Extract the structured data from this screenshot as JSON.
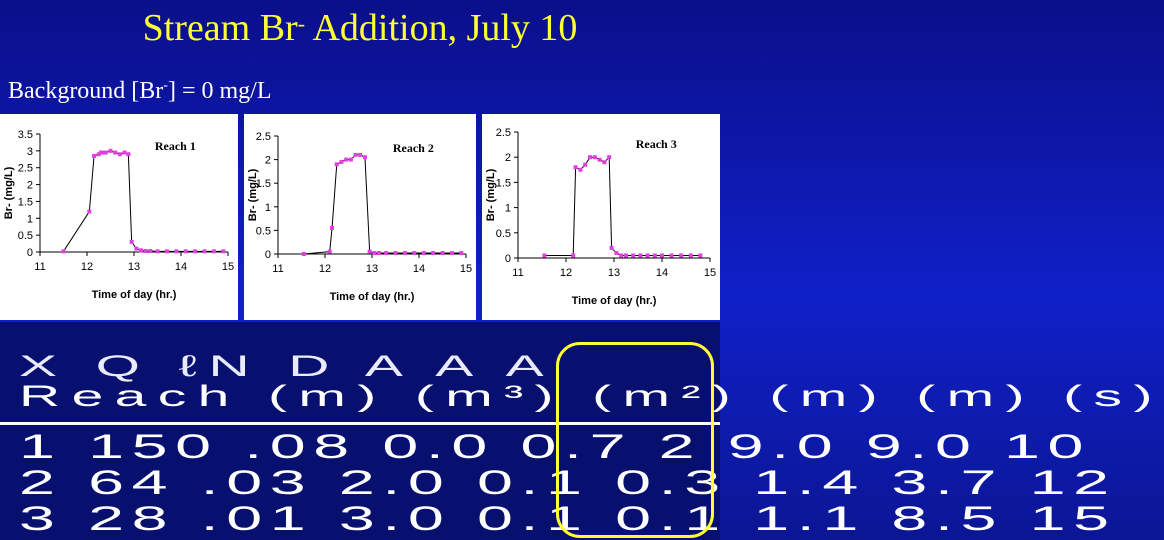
{
  "title": {
    "main": "Stream Br",
    "sup": "-",
    "rest": " Addition, July 10"
  },
  "subtitle": {
    "left": "Background [Br",
    "sup": "-",
    "right": "] = 0 mg/L"
  },
  "chart_data": [
    {
      "type": "scatter",
      "title": "Reach 1",
      "xlabel": "Time of day (hr.)",
      "ylabel": "Br- (mg/L)",
      "xlim": [
        11,
        15
      ],
      "ylim": [
        0,
        3.5
      ],
      "xticks": [
        "11",
        "12",
        "13",
        "14",
        "15"
      ],
      "yticks": [
        "0",
        "0.5",
        "1",
        "1.5",
        "2",
        "2.5",
        "3",
        "3.5"
      ],
      "x": [
        11.5,
        12.05,
        12.15,
        12.25,
        12.3,
        12.35,
        12.4,
        12.5,
        12.6,
        12.7,
        12.8,
        12.88,
        12.95,
        13.05,
        13.15,
        13.25,
        13.35,
        13.5,
        13.7,
        13.9,
        14.1,
        14.3,
        14.5,
        14.7,
        14.9
      ],
      "y": [
        0.02,
        1.2,
        2.85,
        2.9,
        2.95,
        2.95,
        2.95,
        3.0,
        2.95,
        2.9,
        2.95,
        2.9,
        0.3,
        0.1,
        0.05,
        0.03,
        0.03,
        0.02,
        0.02,
        0.02,
        0.02,
        0.02,
        0.02,
        0.02,
        0.02
      ]
    },
    {
      "type": "scatter",
      "title": "Reach 2",
      "xlabel": "Time of day (hr.)",
      "ylabel": "Br- (mg/L)",
      "xlim": [
        11,
        15
      ],
      "ylim": [
        0,
        2.5
      ],
      "xticks": [
        "11",
        "12",
        "13",
        "14",
        "15"
      ],
      "yticks": [
        "0",
        "0.5",
        "1",
        "1.5",
        "2",
        "2.5"
      ],
      "x": [
        11.55,
        12.1,
        12.15,
        12.25,
        12.35,
        12.45,
        12.55,
        12.65,
        12.75,
        12.85,
        12.95,
        13.05,
        13.15,
        13.3,
        13.5,
        13.7,
        13.9,
        14.1,
        14.3,
        14.5,
        14.7,
        14.9
      ],
      "y": [
        0.0,
        0.05,
        0.55,
        1.9,
        1.95,
        2.0,
        2.0,
        2.1,
        2.1,
        2.05,
        0.05,
        0.02,
        0.02,
        0.02,
        0.02,
        0.02,
        0.02,
        0.02,
        0.02,
        0.02,
        0.02,
        0.02
      ]
    },
    {
      "type": "scatter",
      "title": "Reach 3",
      "xlabel": "Time of day (hr.)",
      "ylabel": "Br- (mg/L)",
      "xlim": [
        11,
        15
      ],
      "ylim": [
        0,
        2.5
      ],
      "xticks": [
        "11",
        "12",
        "13",
        "14",
        "15"
      ],
      "yticks": [
        "0",
        "0.5",
        "1",
        "1.5",
        "2",
        "2.5"
      ],
      "x": [
        11.55,
        12.15,
        12.2,
        12.3,
        12.4,
        12.5,
        12.6,
        12.7,
        12.8,
        12.9,
        12.95,
        13.05,
        13.15,
        13.25,
        13.4,
        13.55,
        13.7,
        13.85,
        14.0,
        14.2,
        14.4,
        14.6,
        14.8
      ],
      "y": [
        0.05,
        0.05,
        1.8,
        1.75,
        1.85,
        2.0,
        2.0,
        1.95,
        1.9,
        2.0,
        0.2,
        0.1,
        0.05,
        0.05,
        0.05,
        0.05,
        0.05,
        0.05,
        0.05,
        0.05,
        0.05,
        0.05,
        0.05
      ]
    }
  ],
  "table": {
    "header_top": "X Q   ℓN  D A A A",
    "header_bottom": "Reach (m) (m³) (m²) (m) (m) (s)",
    "rows": [
      {
        "reach": "1",
        "text": "1  150 .08   0.0   0.7 2 9.0 9.0 10"
      },
      {
        "reach": "2",
        "text": "2  64 .03   2.0   0.1 0.3 1.4 3.7 12"
      },
      {
        "reach": "3",
        "text": "3  28 .01   3.0   0.1 0.1 1.1 8.5 15"
      }
    ]
  },
  "colors": {
    "marker": "#e040e0",
    "title": "#ffff33",
    "bracket": "#ffff33",
    "background": "#1020c8"
  }
}
